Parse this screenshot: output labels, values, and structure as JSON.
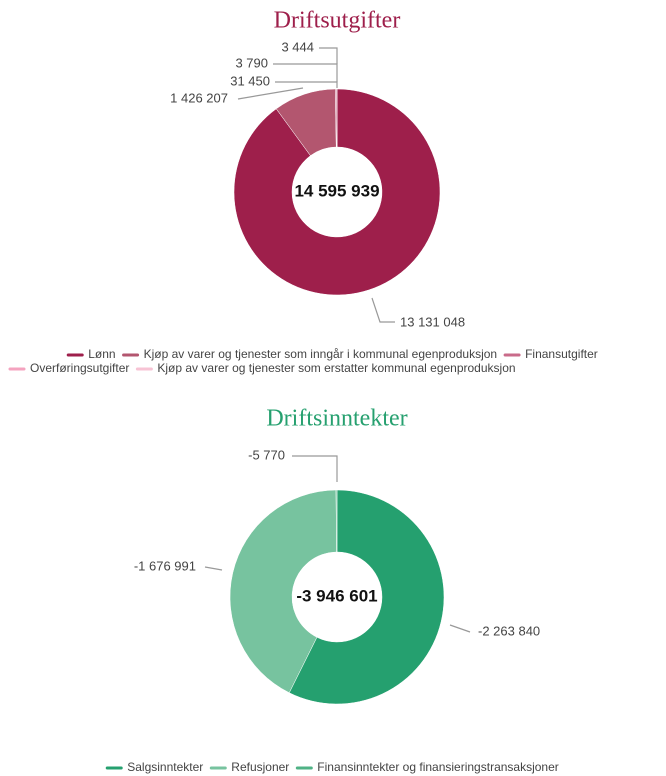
{
  "chart_data": [
    {
      "type": "donut",
      "title": "Driftsutgifter",
      "center_label": "14 595 939",
      "legend": "bottom",
      "categories": [
        "Lønn",
        "Kjøp av varer og tjenester som inngår i kommunal egenproduksjon",
        "Finansutgifter",
        "Overføringsutgifter",
        "Kjøp av varer og tjenester som erstatter kommunal egenproduksjon"
      ],
      "values": [
        13131048,
        1426207,
        31450,
        3790,
        3444
      ],
      "value_labels": [
        "13 131 048",
        "1 426 207",
        "31 450",
        "3 790",
        "3 444"
      ],
      "colors": [
        "#9e1f4b",
        "#b3566f",
        "#c96b8a",
        "#f4a3bf",
        "#f7c3d4"
      ],
      "title_color": "#9e1f4b"
    },
    {
      "type": "donut",
      "title": "Driftsinntekter",
      "center_label": "-3 946 601",
      "legend": "bottom",
      "categories": [
        "Salgsinntekter",
        "Refusjoner",
        "Finansinntekter og finansieringstransaksjoner"
      ],
      "values": [
        -2263840,
        -1676991,
        -5770
      ],
      "value_labels": [
        "-2 263 840",
        "-1 676 991",
        "-5 770"
      ],
      "colors": [
        "#25a06f",
        "#77c39f",
        "#4fb285"
      ],
      "title_color": "#26a06f"
    }
  ]
}
